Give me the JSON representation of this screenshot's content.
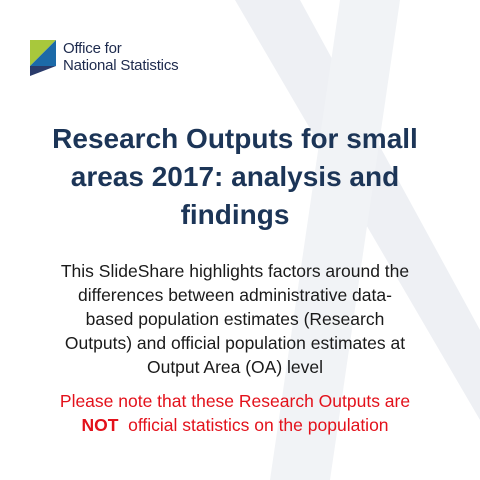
{
  "logo": {
    "lines": [
      "Office for",
      "National Statistics"
    ]
  },
  "title": {
    "lines": [
      "Research Outputs for small",
      "areas 2017: analysis and",
      "findings"
    ]
  },
  "body": {
    "lines": [
      "This SlideShare highlights factors around the",
      "differences between administrative data-",
      "based population estimates (Research",
      "Outputs) and official population estimates at",
      "Output Area (OA) level"
    ]
  },
  "note": {
    "line1": "Please note that these Research Outputs are",
    "emphasis": "NOT",
    "line2_rest": "official statistics on the population"
  }
}
